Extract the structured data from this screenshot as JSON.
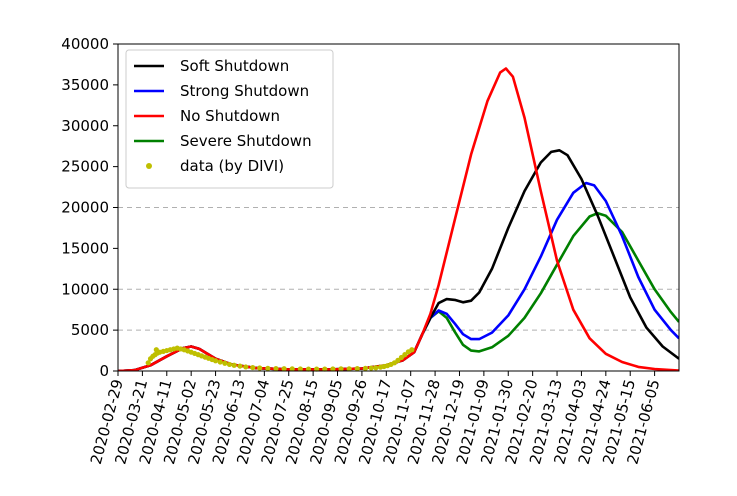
{
  "chart_data": {
    "type": "line",
    "x_tick_labels": [
      "2020-02-29",
      "2020-03-21",
      "2020-04-11",
      "2020-05-02",
      "2020-05-23",
      "2020-06-13",
      "2020-07-04",
      "2020-07-25",
      "2020-08-15",
      "2020-09-05",
      "2020-09-26",
      "2020-10-17",
      "2020-11-07",
      "2020-11-28",
      "2020-12-19",
      "2021-01-09",
      "2021-01-30",
      "2021-02-20",
      "2021-03-13",
      "2021-04-03",
      "2021-04-24",
      "2021-05-15",
      "2021-06-05"
    ],
    "xlim": [
      "2020-02-29",
      "2021-06-26"
    ],
    "y_ticks": [
      0,
      5000,
      10000,
      15000,
      20000,
      25000,
      30000,
      35000,
      40000
    ],
    "y_tick_labels": [
      "0",
      "5000",
      "10000",
      "15000",
      "20000",
      "25000",
      "30000",
      "35000",
      "40000"
    ],
    "ylim": [
      0,
      40000
    ],
    "grid": "horizontal dashed at 5000, 10000, 20000",
    "legend_position": "upper-left",
    "series": [
      {
        "name": "Soft Shutdown",
        "color": "#000000",
        "points": [
          [
            "2020-02-29",
            0
          ],
          [
            "2020-03-14",
            100
          ],
          [
            "2020-03-28",
            700
          ],
          [
            "2020-04-11",
            1800
          ],
          [
            "2020-04-25",
            2800
          ],
          [
            "2020-05-02",
            3000
          ],
          [
            "2020-05-09",
            2700
          ],
          [
            "2020-05-23",
            1500
          ],
          [
            "2020-06-06",
            800
          ],
          [
            "2020-06-27",
            350
          ],
          [
            "2020-07-25",
            200
          ],
          [
            "2020-08-29",
            200
          ],
          [
            "2020-09-26",
            300
          ],
          [
            "2020-10-17",
            700
          ],
          [
            "2020-10-31",
            1300
          ],
          [
            "2020-11-10",
            2300
          ],
          [
            "2020-11-17",
            4500
          ],
          [
            "2020-11-24",
            6500
          ],
          [
            "2020-12-01",
            8300
          ],
          [
            "2020-12-08",
            8800
          ],
          [
            "2020-12-15",
            8700
          ],
          [
            "2020-12-22",
            8400
          ],
          [
            "2020-12-29",
            8600
          ],
          [
            "2021-01-05",
            9600
          ],
          [
            "2021-01-16",
            12500
          ],
          [
            "2021-01-30",
            17500
          ],
          [
            "2021-02-13",
            22000
          ],
          [
            "2021-02-27",
            25500
          ],
          [
            "2021-03-08",
            26800
          ],
          [
            "2021-03-15",
            27000
          ],
          [
            "2021-03-22",
            26400
          ],
          [
            "2021-04-03",
            23500
          ],
          [
            "2021-04-17",
            19000
          ],
          [
            "2021-05-01",
            14000
          ],
          [
            "2021-05-15",
            9000
          ],
          [
            "2021-05-29",
            5300
          ],
          [
            "2021-06-12",
            3000
          ],
          [
            "2021-06-26",
            1500
          ]
        ]
      },
      {
        "name": "Strong Shutdown",
        "color": "#0000ff",
        "points": [
          [
            "2020-02-29",
            0
          ],
          [
            "2020-03-14",
            100
          ],
          [
            "2020-03-28",
            700
          ],
          [
            "2020-04-11",
            1800
          ],
          [
            "2020-04-25",
            2800
          ],
          [
            "2020-05-02",
            3000
          ],
          [
            "2020-05-09",
            2700
          ],
          [
            "2020-05-23",
            1500
          ],
          [
            "2020-06-06",
            800
          ],
          [
            "2020-06-27",
            350
          ],
          [
            "2020-07-25",
            200
          ],
          [
            "2020-08-29",
            200
          ],
          [
            "2020-09-26",
            300
          ],
          [
            "2020-10-17",
            700
          ],
          [
            "2020-10-31",
            1300
          ],
          [
            "2020-11-10",
            2300
          ],
          [
            "2020-11-17",
            4500
          ],
          [
            "2020-11-24",
            6500
          ],
          [
            "2020-12-01",
            7400
          ],
          [
            "2020-12-08",
            7000
          ],
          [
            "2020-12-15",
            5800
          ],
          [
            "2020-12-22",
            4500
          ],
          [
            "2020-12-29",
            3900
          ],
          [
            "2021-01-05",
            3900
          ],
          [
            "2021-01-16",
            4700
          ],
          [
            "2021-01-30",
            6800
          ],
          [
            "2021-02-13",
            10000
          ],
          [
            "2021-02-27",
            14000
          ],
          [
            "2021-03-13",
            18500
          ],
          [
            "2021-03-27",
            21800
          ],
          [
            "2021-04-07",
            23000
          ],
          [
            "2021-04-14",
            22700
          ],
          [
            "2021-04-24",
            20800
          ],
          [
            "2021-05-08",
            16500
          ],
          [
            "2021-05-22",
            11500
          ],
          [
            "2021-06-05",
            7500
          ],
          [
            "2021-06-19",
            5000
          ],
          [
            "2021-06-26",
            4000
          ]
        ]
      },
      {
        "name": "No Shutdown",
        "color": "#ff0000",
        "points": [
          [
            "2020-02-29",
            0
          ],
          [
            "2020-03-14",
            100
          ],
          [
            "2020-03-28",
            700
          ],
          [
            "2020-04-11",
            1800
          ],
          [
            "2020-04-25",
            2800
          ],
          [
            "2020-05-02",
            3000
          ],
          [
            "2020-05-09",
            2700
          ],
          [
            "2020-05-23",
            1500
          ],
          [
            "2020-06-06",
            800
          ],
          [
            "2020-06-27",
            350
          ],
          [
            "2020-07-25",
            200
          ],
          [
            "2020-08-29",
            200
          ],
          [
            "2020-09-26",
            300
          ],
          [
            "2020-10-17",
            700
          ],
          [
            "2020-10-31",
            1300
          ],
          [
            "2020-11-10",
            2300
          ],
          [
            "2020-11-17",
            4500
          ],
          [
            "2020-11-24",
            7000
          ],
          [
            "2020-12-01",
            10500
          ],
          [
            "2020-12-15",
            18500
          ],
          [
            "2020-12-29",
            26500
          ],
          [
            "2021-01-12",
            33000
          ],
          [
            "2021-01-23",
            36500
          ],
          [
            "2021-01-28",
            37000
          ],
          [
            "2021-02-03",
            36000
          ],
          [
            "2021-02-13",
            31000
          ],
          [
            "2021-02-27",
            22000
          ],
          [
            "2021-03-13",
            13500
          ],
          [
            "2021-03-27",
            7500
          ],
          [
            "2021-04-10",
            4000
          ],
          [
            "2021-04-24",
            2100
          ],
          [
            "2021-05-08",
            1100
          ],
          [
            "2021-05-22",
            500
          ],
          [
            "2021-06-05",
            250
          ],
          [
            "2021-06-26",
            50
          ]
        ]
      },
      {
        "name": "Severe Shutdown",
        "color": "#008000",
        "points": [
          [
            "2020-02-29",
            0
          ],
          [
            "2020-03-14",
            100
          ],
          [
            "2020-03-28",
            700
          ],
          [
            "2020-04-11",
            1800
          ],
          [
            "2020-04-25",
            2800
          ],
          [
            "2020-05-02",
            3000
          ],
          [
            "2020-05-09",
            2700
          ],
          [
            "2020-05-23",
            1500
          ],
          [
            "2020-06-06",
            800
          ],
          [
            "2020-06-27",
            350
          ],
          [
            "2020-07-25",
            200
          ],
          [
            "2020-08-29",
            200
          ],
          [
            "2020-09-26",
            300
          ],
          [
            "2020-10-17",
            700
          ],
          [
            "2020-10-31",
            1300
          ],
          [
            "2020-11-10",
            2300
          ],
          [
            "2020-11-17",
            4500
          ],
          [
            "2020-11-24",
            6500
          ],
          [
            "2020-12-01",
            7300
          ],
          [
            "2020-12-08",
            6500
          ],
          [
            "2020-12-15",
            4800
          ],
          [
            "2020-12-22",
            3200
          ],
          [
            "2020-12-29",
            2500
          ],
          [
            "2021-01-05",
            2400
          ],
          [
            "2021-01-16",
            2900
          ],
          [
            "2021-01-30",
            4300
          ],
          [
            "2021-02-13",
            6500
          ],
          [
            "2021-02-27",
            9500
          ],
          [
            "2021-03-13",
            13000
          ],
          [
            "2021-03-27",
            16500
          ],
          [
            "2021-04-10",
            18900
          ],
          [
            "2021-04-17",
            19300
          ],
          [
            "2021-04-24",
            19000
          ],
          [
            "2021-05-08",
            17000
          ],
          [
            "2021-05-22",
            13500
          ],
          [
            "2021-06-05",
            10000
          ],
          [
            "2021-06-19",
            7200
          ],
          [
            "2021-06-26",
            6000
          ]
        ]
      },
      {
        "name": "data (by DIVI)",
        "color": "#bfbf00",
        "style": "dots",
        "points": [
          [
            "2020-03-26",
            1000
          ],
          [
            "2020-03-28",
            1500
          ],
          [
            "2020-03-30",
            1800
          ],
          [
            "2020-04-01",
            2000
          ],
          [
            "2020-04-02",
            2600
          ],
          [
            "2020-04-03",
            2200
          ],
          [
            "2020-04-05",
            2300
          ],
          [
            "2020-04-08",
            2400
          ],
          [
            "2020-04-11",
            2500
          ],
          [
            "2020-04-14",
            2600
          ],
          [
            "2020-04-17",
            2700
          ],
          [
            "2020-04-20",
            2800
          ],
          [
            "2020-04-23",
            2700
          ],
          [
            "2020-04-26",
            2600
          ],
          [
            "2020-04-29",
            2450
          ],
          [
            "2020-05-02",
            2300
          ],
          [
            "2020-05-05",
            2150
          ],
          [
            "2020-05-08",
            2000
          ],
          [
            "2020-05-11",
            1850
          ],
          [
            "2020-05-14",
            1700
          ],
          [
            "2020-05-17",
            1550
          ],
          [
            "2020-05-20",
            1400
          ],
          [
            "2020-05-23",
            1250
          ],
          [
            "2020-05-27",
            1100
          ],
          [
            "2020-05-31",
            950
          ],
          [
            "2020-06-04",
            800
          ],
          [
            "2020-06-08",
            700
          ],
          [
            "2020-06-13",
            600
          ],
          [
            "2020-06-18",
            500
          ],
          [
            "2020-06-24",
            420
          ],
          [
            "2020-06-30",
            370
          ],
          [
            "2020-07-07",
            330
          ],
          [
            "2020-07-14",
            300
          ],
          [
            "2020-07-21",
            280
          ],
          [
            "2020-07-28",
            260
          ],
          [
            "2020-08-04",
            250
          ],
          [
            "2020-08-11",
            240
          ],
          [
            "2020-08-18",
            240
          ],
          [
            "2020-08-25",
            240
          ],
          [
            "2020-09-01",
            250
          ],
          [
            "2020-09-08",
            260
          ],
          [
            "2020-09-15",
            270
          ],
          [
            "2020-09-22",
            290
          ],
          [
            "2020-09-29",
            320
          ],
          [
            "2020-10-04",
            360
          ],
          [
            "2020-10-08",
            400
          ],
          [
            "2020-10-12",
            470
          ],
          [
            "2020-10-15",
            550
          ],
          [
            "2020-10-18",
            650
          ],
          [
            "2020-10-21",
            800
          ],
          [
            "2020-10-24",
            1000
          ],
          [
            "2020-10-27",
            1300
          ],
          [
            "2020-10-30",
            1650
          ],
          [
            "2020-11-02",
            2000
          ],
          [
            "2020-11-05",
            2350
          ],
          [
            "2020-11-08",
            2600
          ]
        ]
      }
    ]
  }
}
